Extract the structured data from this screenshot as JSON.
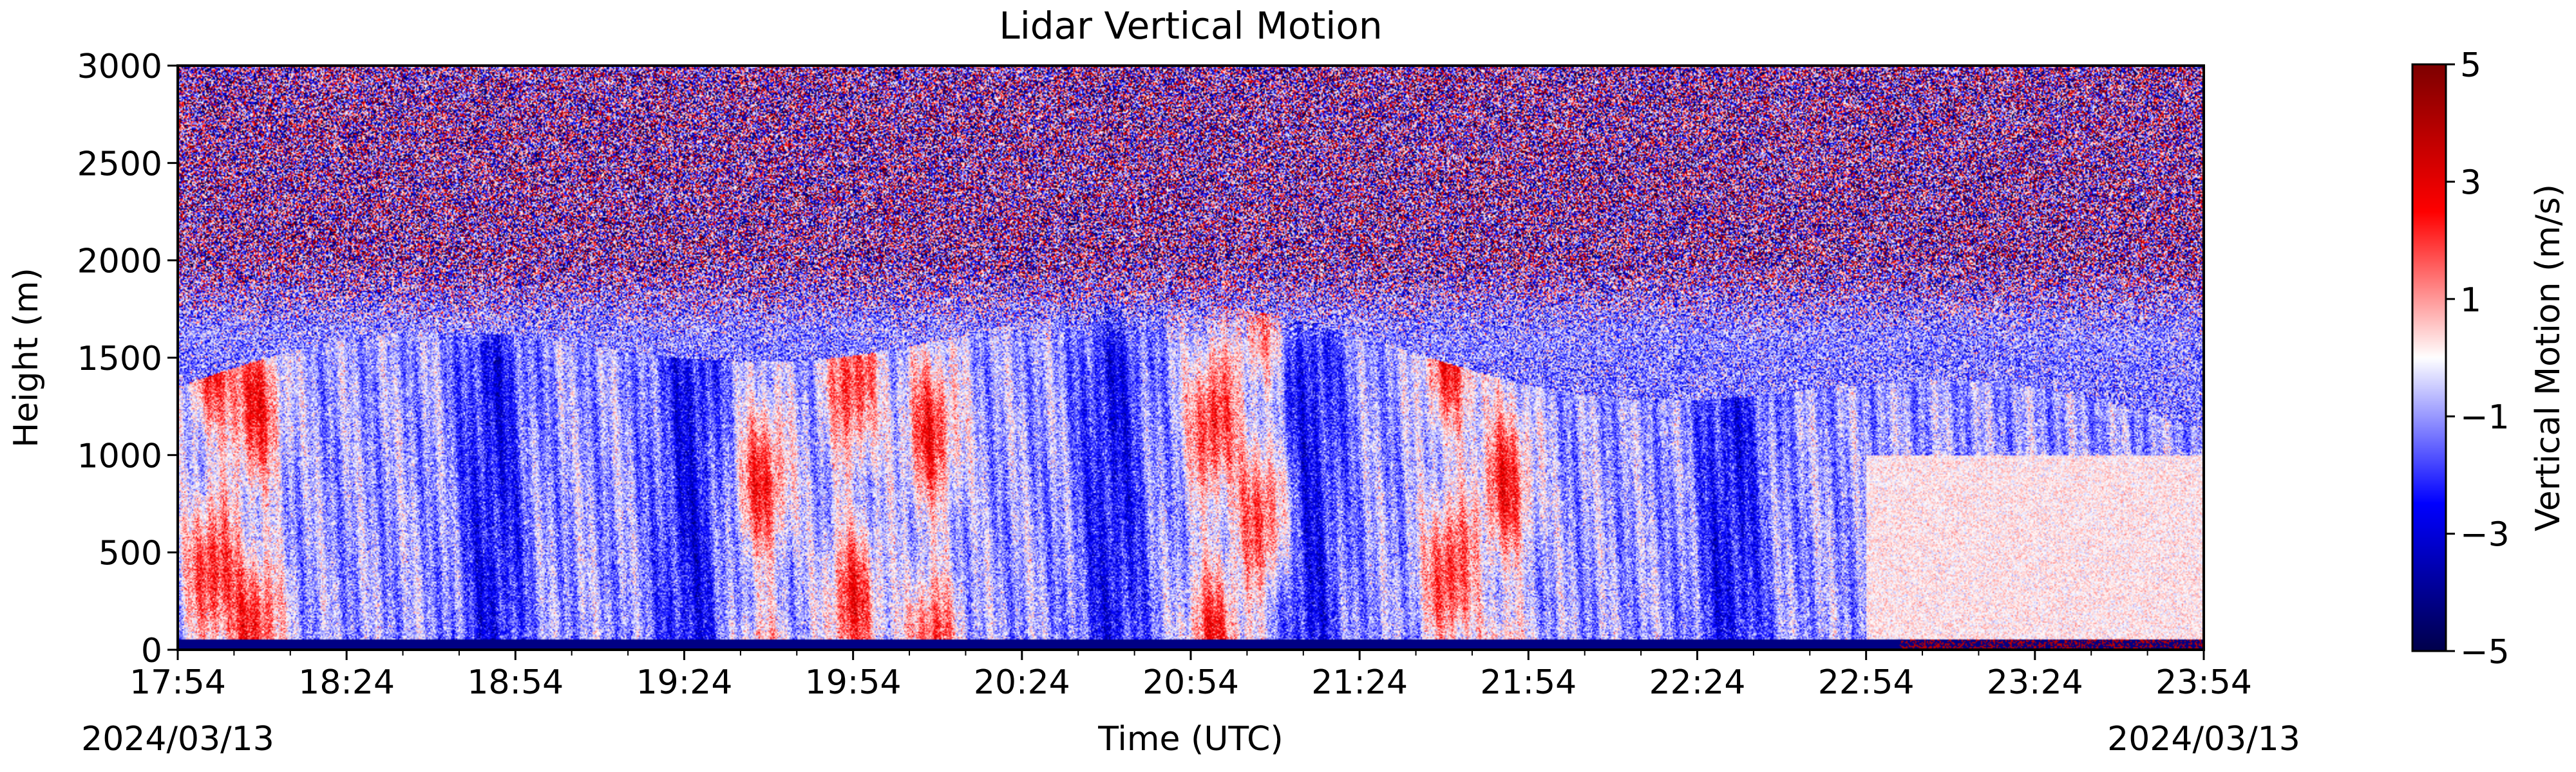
{
  "chart_data": {
    "type": "heatmap",
    "title": "Lidar Vertical Motion",
    "xlabel": "Time (UTC)",
    "ylabel": "Height (m)",
    "x_date_left": "2024/03/13",
    "x_date_right": "2024/03/13",
    "x_ticks": [
      "17:54",
      "18:24",
      "18:54",
      "19:24",
      "19:54",
      "20:24",
      "20:54",
      "21:24",
      "21:54",
      "22:24",
      "22:54",
      "23:24",
      "23:54"
    ],
    "xlim": [
      "17:54",
      "23:54"
    ],
    "y_ticks": [
      0,
      500,
      1000,
      1500,
      2000,
      2500,
      3000
    ],
    "ylim": [
      0,
      3000
    ],
    "colorbar": {
      "label": "Vertical Motion (m/s)",
      "ticks": [
        5,
        3,
        1,
        -1,
        -3,
        -5
      ],
      "tick_labels": [
        "5",
        "3",
        "1",
        "−1",
        "−3",
        "−5"
      ],
      "range": [
        -5,
        5
      ],
      "colormap": "seismic",
      "colors": [
        "#00004c",
        "#0000ff",
        "#ffffff",
        "#ff0000",
        "#7f0000"
      ]
    },
    "features": {
      "noisy_above_m": 1500,
      "noise_dominant_above_m": 2000,
      "updraft_plumes_utc": [
        "18:00",
        "18:08",
        "19:38",
        "19:54",
        "20:08",
        "20:58",
        "21:07",
        "21:40",
        "21:50"
      ],
      "downdraft_plumes_utc": [
        "18:50",
        "19:25",
        "20:40",
        "21:15",
        "22:30"
      ],
      "near_surface_stripe_m": 50
    }
  }
}
